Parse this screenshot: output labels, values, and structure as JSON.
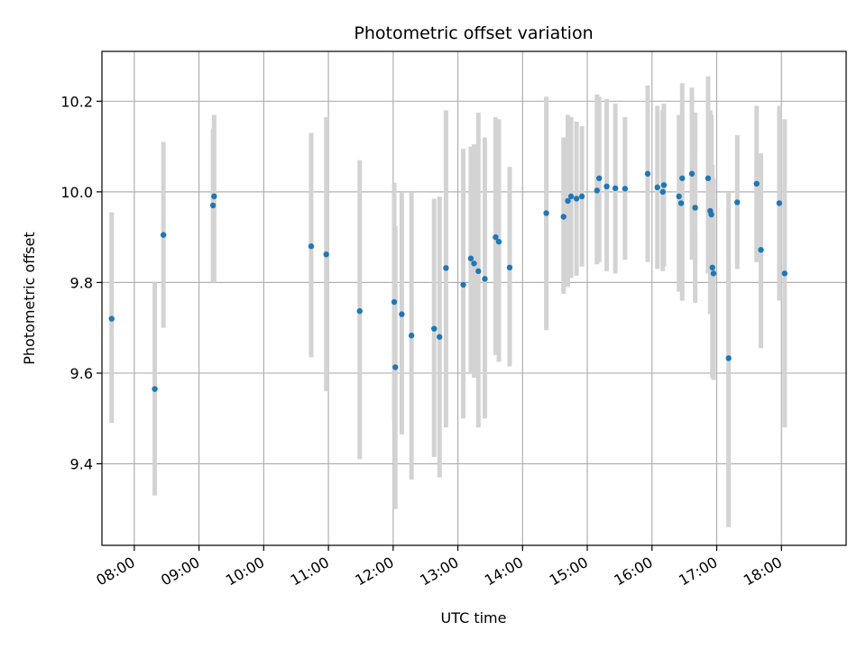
{
  "chart_data": {
    "type": "scatter",
    "title": "Photometric offset variation",
    "xlabel": "UTC time",
    "ylabel": "Photometric offset",
    "x_range": [
      "07:30",
      "19:00"
    ],
    "ylim": [
      9.22,
      10.31
    ],
    "grid": true,
    "legend": "none",
    "x_ticks": [
      "08:00",
      "09:00",
      "10:00",
      "11:00",
      "12:00",
      "13:00",
      "14:00",
      "15:00",
      "16:00",
      "17:00",
      "18:00"
    ],
    "y_ticks": [
      9.4,
      9.6,
      9.8,
      10.0,
      10.2
    ],
    "colors": {
      "points": "#1f77b4",
      "errorbars": "#d3d3d3",
      "grid": "#b0b0b0"
    },
    "series": [
      {
        "points": [
          {
            "x": "07:39",
            "y": 9.72,
            "ylow": 9.49,
            "yhigh": 9.955
          },
          {
            "x": "08:19",
            "y": 9.565,
            "ylow": 9.33,
            "yhigh": 9.8
          },
          {
            "x": "08:27",
            "y": 9.905,
            "ylow": 9.7,
            "yhigh": 10.11
          },
          {
            "x": "09:13",
            "y": 9.97,
            "ylow": 9.8,
            "yhigh": 10.14
          },
          {
            "x": "09:14",
            "y": 9.99,
            "ylow": 9.8,
            "yhigh": 10.17
          },
          {
            "x": "10:44",
            "y": 9.88,
            "ylow": 9.635,
            "yhigh": 10.13
          },
          {
            "x": "10:58",
            "y": 9.862,
            "ylow": 9.56,
            "yhigh": 10.165
          },
          {
            "x": "11:29",
            "y": 9.737,
            "ylow": 9.41,
            "yhigh": 10.07
          },
          {
            "x": "12:01",
            "y": 9.757,
            "ylow": 9.495,
            "yhigh": 10.02
          },
          {
            "x": "12:02",
            "y": 9.613,
            "ylow": 9.3,
            "yhigh": 9.925
          },
          {
            "x": "12:08",
            "y": 9.73,
            "ylow": 9.465,
            "yhigh": 10.0
          },
          {
            "x": "12:17",
            "y": 9.683,
            "ylow": 9.365,
            "yhigh": 10.0
          },
          {
            "x": "12:38",
            "y": 9.698,
            "ylow": 9.415,
            "yhigh": 9.985
          },
          {
            "x": "12:43",
            "y": 9.68,
            "ylow": 9.37,
            "yhigh": 9.99
          },
          {
            "x": "12:49",
            "y": 9.832,
            "ylow": 9.48,
            "yhigh": 10.18
          },
          {
            "x": "13:05",
            "y": 9.795,
            "ylow": 9.5,
            "yhigh": 10.095
          },
          {
            "x": "13:12",
            "y": 9.853,
            "ylow": 9.6,
            "yhigh": 10.1
          },
          {
            "x": "13:15",
            "y": 9.842,
            "ylow": 9.59,
            "yhigh": 10.105
          },
          {
            "x": "13:19",
            "y": 9.825,
            "ylow": 9.48,
            "yhigh": 10.175
          },
          {
            "x": "13:25",
            "y": 9.808,
            "ylow": 9.5,
            "yhigh": 10.12
          },
          {
            "x": "13:35",
            "y": 9.9,
            "ylow": 9.64,
            "yhigh": 10.165
          },
          {
            "x": "13:38",
            "y": 9.89,
            "ylow": 9.625,
            "yhigh": 10.16
          },
          {
            "x": "13:48",
            "y": 9.833,
            "ylow": 9.615,
            "yhigh": 10.055
          },
          {
            "x": "14:22",
            "y": 9.953,
            "ylow": 9.695,
            "yhigh": 10.21
          },
          {
            "x": "14:38",
            "y": 9.945,
            "ylow": 9.775,
            "yhigh": 10.12
          },
          {
            "x": "14:42",
            "y": 9.98,
            "ylow": 9.79,
            "yhigh": 10.17
          },
          {
            "x": "14:45",
            "y": 9.99,
            "ylow": 9.81,
            "yhigh": 10.165
          },
          {
            "x": "14:50",
            "y": 9.985,
            "ylow": 9.815,
            "yhigh": 10.155
          },
          {
            "x": "14:55",
            "y": 9.99,
            "ylow": 9.835,
            "yhigh": 10.145
          },
          {
            "x": "15:09",
            "y": 10.003,
            "ylow": 9.84,
            "yhigh": 10.215
          },
          {
            "x": "15:11",
            "y": 10.03,
            "ylow": 9.845,
            "yhigh": 10.21
          },
          {
            "x": "15:18",
            "y": 10.012,
            "ylow": 9.825,
            "yhigh": 10.205
          },
          {
            "x": "15:26",
            "y": 10.008,
            "ylow": 9.82,
            "yhigh": 10.195
          },
          {
            "x": "15:35",
            "y": 10.007,
            "ylow": 9.85,
            "yhigh": 10.165
          },
          {
            "x": "15:56",
            "y": 10.04,
            "ylow": 9.845,
            "yhigh": 10.235
          },
          {
            "x": "16:05",
            "y": 10.01,
            "ylow": 9.83,
            "yhigh": 10.19
          },
          {
            "x": "16:10",
            "y": 10.0,
            "ylow": 9.825,
            "yhigh": 10.18
          },
          {
            "x": "16:11",
            "y": 10.015,
            "ylow": 9.835,
            "yhigh": 10.195
          },
          {
            "x": "16:25",
            "y": 9.99,
            "ylow": 9.78,
            "yhigh": 10.17
          },
          {
            "x": "16:27",
            "y": 9.975,
            "ylow": 9.8,
            "yhigh": 10.15
          },
          {
            "x": "16:28",
            "y": 10.03,
            "ylow": 9.76,
            "yhigh": 10.24
          },
          {
            "x": "16:37",
            "y": 10.04,
            "ylow": 9.85,
            "yhigh": 10.23
          },
          {
            "x": "16:40",
            "y": 9.965,
            "ylow": 9.755,
            "yhigh": 10.175
          },
          {
            "x": "16:52",
            "y": 10.03,
            "ylow": 9.82,
            "yhigh": 10.255
          },
          {
            "x": "16:54",
            "y": 9.958,
            "ylow": 9.73,
            "yhigh": 10.18
          },
          {
            "x": "16:55",
            "y": 9.95,
            "ylow": 9.73,
            "yhigh": 10.17
          },
          {
            "x": "16:56",
            "y": 9.833,
            "ylow": 9.59,
            "yhigh": 10.06
          },
          {
            "x": "16:57",
            "y": 9.82,
            "ylow": 9.585,
            "yhigh": 10.03
          },
          {
            "x": "17:11",
            "y": 9.633,
            "ylow": 9.26,
            "yhigh": 10.0
          },
          {
            "x": "17:19",
            "y": 9.977,
            "ylow": 9.83,
            "yhigh": 10.125
          },
          {
            "x": "17:37",
            "y": 10.018,
            "ylow": 9.845,
            "yhigh": 10.19
          },
          {
            "x": "17:41",
            "y": 9.872,
            "ylow": 9.655,
            "yhigh": 10.085
          },
          {
            "x": "17:58",
            "y": 9.975,
            "ylow": 9.76,
            "yhigh": 10.19
          },
          {
            "x": "18:03",
            "y": 9.82,
            "ylow": 9.48,
            "yhigh": 10.16
          }
        ]
      }
    ]
  }
}
